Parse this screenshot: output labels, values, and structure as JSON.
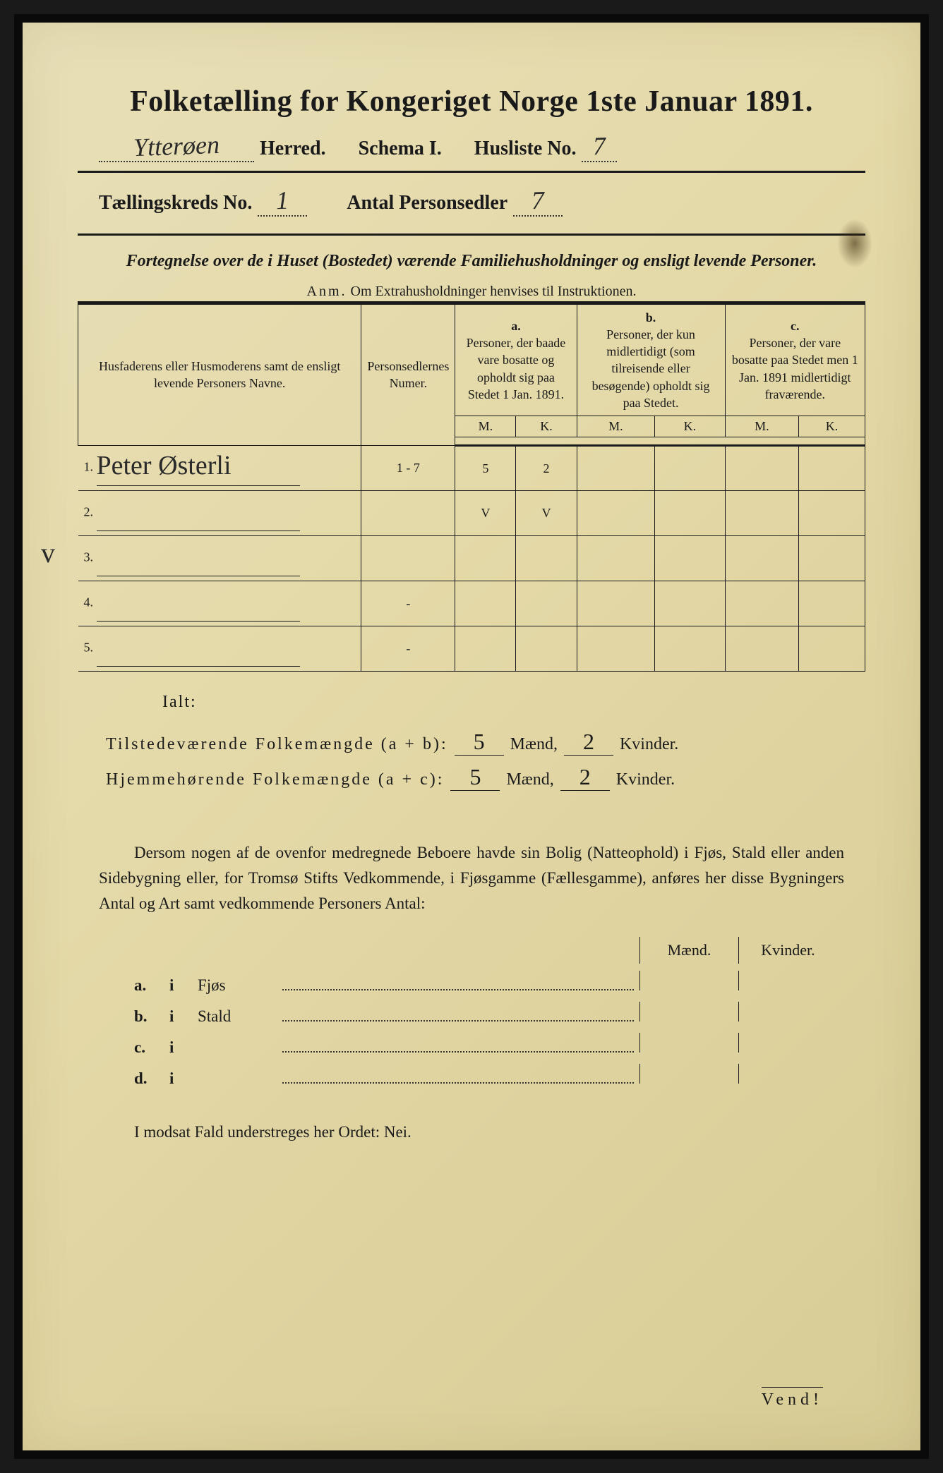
{
  "title": "Folketælling for Kongeriget Norge 1ste Januar 1891.",
  "header": {
    "herred_value": "Ytterøen",
    "herred_label": "Herred.",
    "schema_label": "Schema I.",
    "husliste_label": "Husliste No.",
    "husliste_value": "7",
    "kreds_label": "Tællingskreds No.",
    "kreds_value": "1",
    "antal_label": "Antal Personsedler",
    "antal_value": "7"
  },
  "subtitle": "Fortegnelse over de i Huset (Bostedet) værende Familiehusholdninger og ensligt levende Personer.",
  "anm_label": "Anm.",
  "anm_text": "Om Extrahusholdninger henvises til Instruktionen.",
  "table": {
    "col_name": "Husfaderens eller Husmoderens samt de ensligt levende Personers Navne.",
    "col_num": "Personsedlernes Numer.",
    "col_a_label": "a.",
    "col_a": "Personer, der baade vare bosatte og opholdt sig paa Stedet 1 Jan. 1891.",
    "col_b_label": "b.",
    "col_b": "Personer, der kun midlertidigt (som tilreisende eller besøgende) opholdt sig paa Stedet.",
    "col_c_label": "c.",
    "col_c": "Personer, der vare bosatte paa Stedet men 1 Jan. 1891 midlertidigt fraværende.",
    "m": "M.",
    "k": "K.",
    "rows": [
      {
        "n": "1.",
        "name": "Peter Østerli",
        "num": "1 - 7",
        "am": "5",
        "ak": "2",
        "bm": "",
        "bk": "",
        "cm": "",
        "ck": ""
      },
      {
        "n": "2.",
        "name": "",
        "num": "",
        "am": "V",
        "ak": "V",
        "bm": "",
        "bk": "",
        "cm": "",
        "ck": ""
      },
      {
        "n": "3.",
        "name": "",
        "num": "",
        "am": "",
        "ak": "",
        "bm": "",
        "bk": "",
        "cm": "",
        "ck": ""
      },
      {
        "n": "4.",
        "name": "",
        "num": "-",
        "am": "",
        "ak": "",
        "bm": "",
        "bk": "",
        "cm": "",
        "ck": ""
      },
      {
        "n": "5.",
        "name": "",
        "num": "-",
        "am": "",
        "ak": "",
        "bm": "",
        "bk": "",
        "cm": "",
        "ck": ""
      }
    ]
  },
  "ialt": "Ialt:",
  "totals": {
    "line1_label": "Tilstedeværende Folkemængde (a + b):",
    "line1_m": "5",
    "line1_k": "2",
    "line2_label": "Hjemmehørende Folkemængde (a + c):",
    "line2_m": "5",
    "line2_k": "2",
    "maend": "Mænd,",
    "kvinder": "Kvinder."
  },
  "paragraph": "Dersom nogen af de ovenfor medregnede Beboere havde sin Bolig (Natteophold) i Fjøs, Stald eller anden Sidebygning eller, for Tromsø Stifts Vedkommende, i Fjøsgamme (Fællesgamme), anføres her disse Bygningers Antal og Art samt vedkommende Personers Antal:",
  "bottom": {
    "maend": "Mænd.",
    "kvinder": "Kvinder.",
    "rows": [
      {
        "lbl": "a.",
        "i": "i",
        "name": "Fjøs"
      },
      {
        "lbl": "b.",
        "i": "i",
        "name": "Stald"
      },
      {
        "lbl": "c.",
        "i": "i",
        "name": ""
      },
      {
        "lbl": "d.",
        "i": "i",
        "name": ""
      }
    ]
  },
  "footer": "I modsat Fald understreges her Ordet: Nei.",
  "vend": "Vend!",
  "check": "v"
}
